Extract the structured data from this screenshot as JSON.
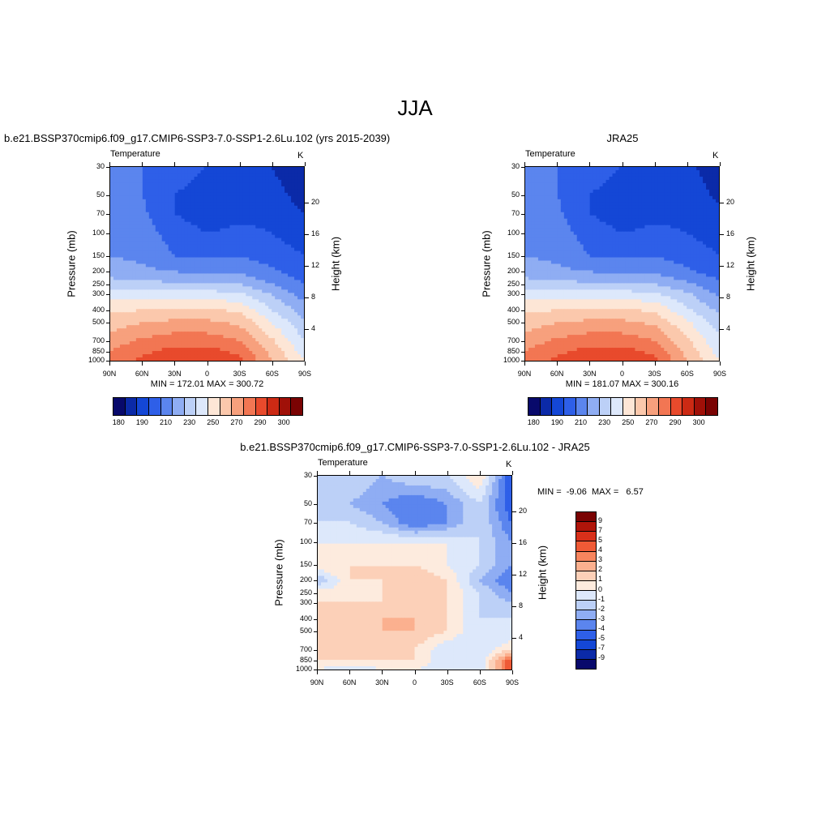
{
  "figure": {
    "title": "JJA"
  },
  "panels": [
    {
      "title": "b.e21.BSSP370cmip6.f09_g17.CMIP6-SSP3-7.0-SSP1-2.6Lu.102 (yrs 2015-2039)",
      "left_label": "Temperature",
      "right_label": "K",
      "stats": "MIN = 172.01  MAX = 300.72"
    },
    {
      "title": "JRA25",
      "left_label": "Temperature",
      "right_label": "K",
      "stats": "MIN = 181.07  MAX = 300.16"
    },
    {
      "title": "b.e21.BSSP370cmip6.f09_g17.CMIP6-SSP3-7.0-SSP1-2.6Lu.102 - JRA25",
      "left_label": "Temperature",
      "right_label": "K",
      "stats": "MIN =  -9.06  MAX =   6.57"
    }
  ],
  "axes": {
    "xlabel": "",
    "ylabel_left": "Pressure (mb)",
    "ylabel_right": "Height (km)",
    "x_ticks": [
      "90N",
      "60N",
      "30N",
      "0",
      "30S",
      "60S",
      "90S"
    ],
    "pressure_ticks": [
      "30",
      "50",
      "70",
      "100",
      "150",
      "200",
      "250",
      "300",
      "400",
      "500",
      "700",
      "850",
      "1000"
    ],
    "height_ticks": [
      "4",
      "8",
      "12",
      "16",
      "20"
    ]
  },
  "colorbars": {
    "abs": {
      "labels": [
        "180",
        "190",
        "210",
        "230",
        "250",
        "270",
        "290",
        "300"
      ],
      "colors": [
        "#08096b",
        "#0b2aa8",
        "#1447d6",
        "#2e5fe8",
        "#5b85ee",
        "#8fadf3",
        "#bcd0f7",
        "#dde8fb",
        "#fde6d6",
        "#fbc8ac",
        "#f7a07d",
        "#f27653",
        "#e84a2c",
        "#cc2a14",
        "#a01008",
        "#7a0303"
      ]
    },
    "diff": {
      "labels": [
        "9",
        "7",
        "5",
        "4",
        "3",
        "2",
        "1",
        "0",
        "-1",
        "-2",
        "-3",
        "-4",
        "-5",
        "-7",
        "-9"
      ],
      "colors": [
        "#7a0303",
        "#b0150a",
        "#d8301a",
        "#ef5a36",
        "#f7855e",
        "#fbb08f",
        "#fcd0b8",
        "#fdebde",
        "#dde8fb",
        "#bcd0f7",
        "#8fadf3",
        "#5b85ee",
        "#2e5fe8",
        "#1447d6",
        "#0b2aa8",
        "#08096b"
      ]
    }
  },
  "chart_data": [
    {
      "type": "heatmap",
      "title": "b.e21.BSSP370cmip6.f09_g17.CMIP6-SSP3-7.0-SSP1-2.6Lu.102 (yrs 2015-2039)",
      "variable": "Temperature",
      "units": "K",
      "x_categories": [
        "90N",
        "60N",
        "30N",
        "0",
        "30S",
        "60S",
        "90S"
      ],
      "y_pressure_mb": [
        30,
        50,
        70,
        100,
        150,
        200,
        250,
        300,
        400,
        500,
        700,
        850,
        1000
      ],
      "min": 172.01,
      "max": 300.72,
      "levels": [
        180,
        190,
        200,
        210,
        220,
        230,
        240,
        250,
        260,
        270,
        280,
        290,
        300
      ],
      "approx_values_K": [
        [
          210,
          210,
          205,
          200,
          200,
          190,
          180
        ],
        [
          212,
          210,
          200,
          195,
          198,
          195,
          185
        ],
        [
          215,
          212,
          200,
          195,
          198,
          198,
          190
        ],
        [
          218,
          215,
          205,
          200,
          202,
          200,
          195
        ],
        [
          220,
          218,
          210,
          208,
          210,
          205,
          200
        ],
        [
          225,
          222,
          220,
          218,
          218,
          212,
          205
        ],
        [
          235,
          233,
          232,
          232,
          230,
          220,
          210
        ],
        [
          245,
          244,
          244,
          244,
          242,
          230,
          215
        ],
        [
          258,
          260,
          262,
          262,
          258,
          240,
          225
        ],
        [
          265,
          270,
          272,
          272,
          268,
          250,
          232
        ],
        [
          275,
          282,
          286,
          286,
          280,
          262,
          240
        ],
        [
          280,
          288,
          294,
          294,
          288,
          268,
          245
        ],
        [
          285,
          292,
          298,
          298,
          292,
          270,
          250
        ]
      ]
    },
    {
      "type": "heatmap",
      "title": "JRA25",
      "variable": "Temperature",
      "units": "K",
      "x_categories": [
        "90N",
        "60N",
        "30N",
        "0",
        "30S",
        "60S",
        "90S"
      ],
      "y_pressure_mb": [
        30,
        50,
        70,
        100,
        150,
        200,
        250,
        300,
        400,
        500,
        700,
        850,
        1000
      ],
      "min": 181.07,
      "max": 300.16,
      "levels": [
        180,
        190,
        200,
        210,
        220,
        230,
        240,
        250,
        260,
        270,
        280,
        290,
        300
      ],
      "approx_values_K": [
        [
          212,
          210,
          205,
          200,
          200,
          192,
          185
        ],
        [
          214,
          210,
          200,
          195,
          198,
          195,
          188
        ],
        [
          216,
          212,
          200,
          195,
          198,
          198,
          192
        ],
        [
          218,
          215,
          205,
          200,
          202,
          200,
          196
        ],
        [
          220,
          218,
          210,
          208,
          210,
          205,
          200
        ],
        [
          225,
          222,
          220,
          218,
          218,
          212,
          205
        ],
        [
          235,
          233,
          232,
          232,
          230,
          222,
          212
        ],
        [
          245,
          244,
          244,
          244,
          242,
          232,
          218
        ],
        [
          258,
          260,
          262,
          262,
          258,
          242,
          228
        ],
        [
          265,
          270,
          272,
          272,
          268,
          252,
          235
        ],
        [
          275,
          282,
          286,
          286,
          280,
          262,
          242
        ],
        [
          280,
          288,
          294,
          294,
          288,
          268,
          246
        ],
        [
          284,
          292,
          298,
          298,
          292,
          270,
          250
        ]
      ]
    },
    {
      "type": "heatmap",
      "title": "b.e21.BSSP370cmip6.f09_g17.CMIP6-SSP3-7.0-SSP1-2.6Lu.102 - JRA25",
      "variable": "Temperature",
      "units": "K",
      "x_categories": [
        "90N",
        "60N",
        "30N",
        "0",
        "30S",
        "60S",
        "90S"
      ],
      "y_pressure_mb": [
        30,
        50,
        70,
        100,
        150,
        200,
        250,
        300,
        400,
        500,
        700,
        850,
        1000
      ],
      "min": -9.06,
      "max": 6.57,
      "levels": [
        -9,
        -7,
        -5,
        -4,
        -3,
        -2,
        -1,
        0,
        1,
        2,
        3,
        4,
        5,
        7,
        9
      ],
      "approx_values_K": [
        [
          -1,
          -1,
          -2,
          -1,
          -1,
          1,
          -5
        ],
        [
          -1,
          -2,
          -3,
          -4,
          -3,
          -1,
          -5
        ],
        [
          -1,
          -1,
          -2,
          -4,
          -3,
          -1,
          -4
        ],
        [
          0,
          0,
          0,
          0,
          0,
          -1,
          -3
        ],
        [
          1,
          1,
          1,
          1,
          0,
          -1,
          -3
        ],
        [
          -2,
          1,
          1,
          2,
          1,
          -2,
          -4
        ],
        [
          1,
          0,
          1,
          2,
          1,
          -1,
          -3
        ],
        [
          1,
          1,
          1,
          2,
          1,
          -1,
          -2
        ],
        [
          1,
          1,
          2,
          2,
          1,
          -1,
          -1
        ],
        [
          1,
          1,
          2,
          2,
          1,
          -1,
          -1
        ],
        [
          1,
          1,
          1,
          1,
          -1,
          -1,
          1
        ],
        [
          1,
          1,
          1,
          1,
          -1,
          -1,
          5
        ],
        [
          0,
          -1,
          0,
          0,
          -1,
          -1,
          5
        ]
      ]
    }
  ]
}
